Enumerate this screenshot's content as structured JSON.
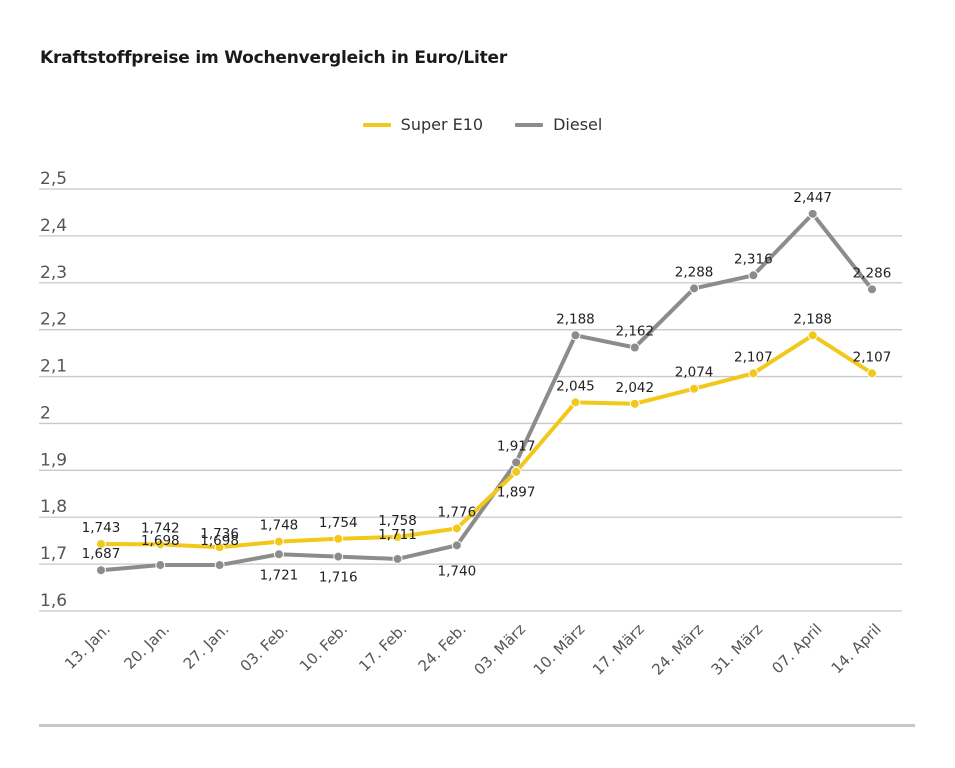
{
  "title": "Kraftstoffpreise im Wochenvergleich in Euro/Liter",
  "legend": [
    {
      "label": "Super E10",
      "color": "#f2c81a"
    },
    {
      "label": "Diesel",
      "color": "#8c8c8c"
    }
  ],
  "chart_data": {
    "type": "line",
    "title": "Kraftstoffpreise im Wochenvergleich in Euro/Liter",
    "xlabel": "",
    "ylabel": "",
    "categories": [
      "13. Jan.",
      "20. Jan.",
      "27. Jan.",
      "03. Feb.",
      "10. Feb.",
      "17. Feb.",
      "24. Feb.",
      "03. März",
      "10. März",
      "17. März",
      "24. März",
      "31. März",
      "07. April",
      "14. April"
    ],
    "series": [
      {
        "name": "Super E10",
        "color": "#f2c81a",
        "values": [
          1.743,
          1.742,
          1.736,
          1.748,
          1.754,
          1.758,
          1.776,
          1.897,
          2.045,
          2.042,
          2.074,
          2.107,
          2.188,
          2.107
        ],
        "labels": [
          "1,743",
          "1,742",
          "1,736",
          "1,748",
          "1,754",
          "1,758",
          "1,776",
          "1,897",
          "2,045",
          "2,042",
          "2,074",
          "2,107",
          "2,188",
          "2,107"
        ]
      },
      {
        "name": "Diesel",
        "color": "#8c8c8c",
        "values": [
          1.687,
          1.698,
          1.698,
          1.721,
          1.716,
          1.711,
          1.74,
          1.917,
          2.188,
          2.162,
          2.288,
          2.316,
          2.447,
          2.286
        ],
        "labels": [
          "1,687",
          "1,698",
          "1,698",
          "1,721",
          "1,716",
          "1,711",
          "1,740",
          "1,917",
          "2,188",
          "2,162",
          "2,288",
          "2,316",
          "2,447",
          "2,286"
        ]
      }
    ],
    "ylim": [
      1.6,
      2.5
    ],
    "yticks": [
      1.6,
      1.7,
      1.8,
      1.9,
      2.0,
      2.1,
      2.2,
      2.3,
      2.4,
      2.5
    ],
    "ytick_labels": [
      "1,6",
      "1,7",
      "1,8",
      "1,9",
      "2",
      "2,1",
      "2,2",
      "2,3",
      "2,4",
      "2,5"
    ],
    "grid": true,
    "legend_position": "top-center"
  }
}
